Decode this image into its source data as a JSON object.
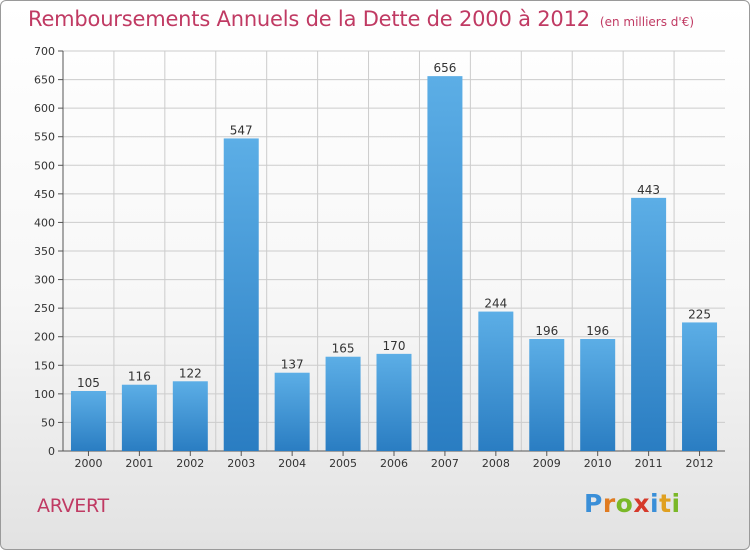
{
  "title": "Remboursements Annuels de la Dette de 2000 à 2012",
  "unit": "(en milliers d'€)",
  "place": "ARVERT",
  "logo": {
    "text": "Proxiti",
    "letters": [
      "P",
      "r",
      "o",
      "x",
      "i",
      "t",
      "i"
    ]
  },
  "colors": {
    "title": "#c03a63",
    "bar_light": "#5caee6",
    "bar_dark": "#2a7dc2",
    "grid": "#cccccc"
  },
  "chart_data": {
    "type": "bar",
    "categories": [
      "2000",
      "2001",
      "2002",
      "2003",
      "2004",
      "2005",
      "2006",
      "2007",
      "2008",
      "2009",
      "2010",
      "2011",
      "2012"
    ],
    "values": [
      105,
      116,
      122,
      547,
      137,
      165,
      170,
      656,
      244,
      196,
      196,
      443,
      225
    ],
    "title": "Remboursements Annuels de la Dette de 2000 à 2012",
    "ylabel": "(en milliers d'€)",
    "ylim": [
      0,
      700
    ],
    "yticks": [
      0,
      50,
      100,
      150,
      200,
      250,
      300,
      350,
      400,
      450,
      500,
      550,
      600,
      650,
      700
    ],
    "grid": true,
    "data_labels": true
  }
}
